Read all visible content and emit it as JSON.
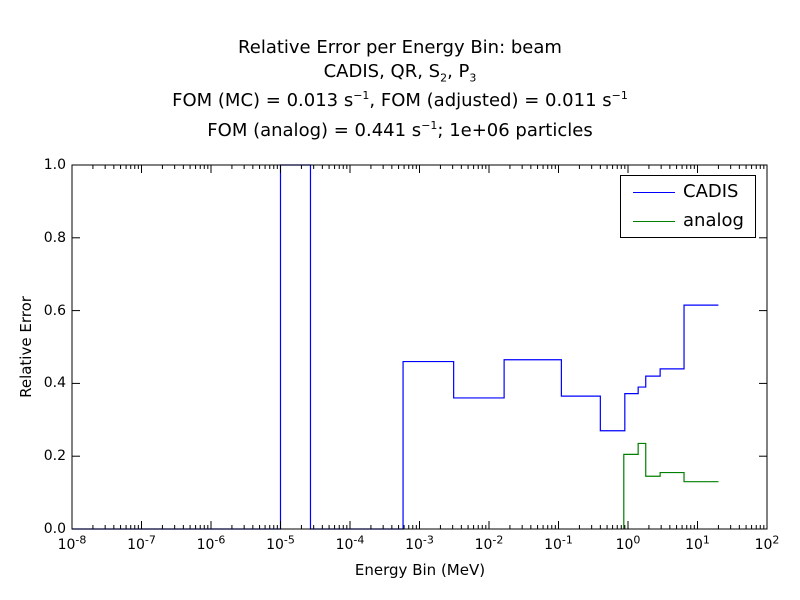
{
  "title": {
    "line1": "Relative Error per Energy Bin: beam",
    "line2_text": "CADIS, QR, S",
    "line2_sn": "2",
    "line2_mid": ", P",
    "line2_pn": "3",
    "line3_a": "FOM (MC) = 0.013 s",
    "line3_sup": "−1",
    "line3_b": ", FOM (adjusted) = 0.011 s",
    "line3_sup2": "−1",
    "line4_a": "FOM (analog) = 0.441 s",
    "line4_sup": "−1",
    "line4_b": ";  1e+06 particles"
  },
  "colors": {
    "cadis": "#0000ff",
    "analog": "#008000"
  },
  "chart_data": {
    "type": "line",
    "step": "post",
    "xscale": "log",
    "xlabel": "Energy Bin (MeV)",
    "ylabel": "Relative Error",
    "xlim": [
      1e-08,
      100
    ],
    "ylim": [
      0,
      1.0
    ],
    "xticks": [
      {
        "base": "10",
        "exp": "-8"
      },
      {
        "base": "10",
        "exp": "-7"
      },
      {
        "base": "10",
        "exp": "-6"
      },
      {
        "base": "10",
        "exp": "-5"
      },
      {
        "base": "10",
        "exp": "-4"
      },
      {
        "base": "10",
        "exp": "-3"
      },
      {
        "base": "10",
        "exp": "-2"
      },
      {
        "base": "10",
        "exp": "-1"
      },
      {
        "base": "10",
        "exp": "0"
      },
      {
        "base": "10",
        "exp": "1"
      },
      {
        "base": "10",
        "exp": "2"
      }
    ],
    "yticks": [
      "0.0",
      "0.2",
      "0.4",
      "0.6",
      "0.8",
      "1.0"
    ],
    "legend_position": "top-right",
    "series": [
      {
        "name": "CADIS",
        "points": [
          [
            1e-08,
            0.0
          ],
          [
            1e-05,
            0.0
          ],
          [
            1e-05,
            1.0
          ],
          [
            2.7e-05,
            1.0
          ],
          [
            2.7e-05,
            0.0
          ],
          [
            0.00058,
            0.0
          ],
          [
            0.00058,
            0.46
          ],
          [
            0.0031,
            0.46
          ],
          [
            0.0031,
            0.36
          ],
          [
            0.0165,
            0.36
          ],
          [
            0.0165,
            0.465
          ],
          [
            0.11,
            0.465
          ],
          [
            0.11,
            0.365
          ],
          [
            0.4,
            0.365
          ],
          [
            0.4,
            0.27
          ],
          [
            0.9,
            0.27
          ],
          [
            0.9,
            0.372
          ],
          [
            1.4,
            0.372
          ],
          [
            1.4,
            0.39
          ],
          [
            1.8,
            0.39
          ],
          [
            1.8,
            0.42
          ],
          [
            2.9,
            0.42
          ],
          [
            2.9,
            0.44
          ],
          [
            6.4,
            0.44
          ],
          [
            6.4,
            0.615
          ],
          [
            20,
            0.615
          ]
        ]
      },
      {
        "name": "analog",
        "points": [
          [
            0.87,
            0.0
          ],
          [
            0.87,
            0.205
          ],
          [
            1.4,
            0.205
          ],
          [
            1.4,
            0.235
          ],
          [
            1.8,
            0.235
          ],
          [
            1.8,
            0.145
          ],
          [
            2.9,
            0.145
          ],
          [
            2.9,
            0.155
          ],
          [
            6.4,
            0.155
          ],
          [
            6.4,
            0.13
          ],
          [
            20,
            0.13
          ]
        ]
      }
    ]
  }
}
